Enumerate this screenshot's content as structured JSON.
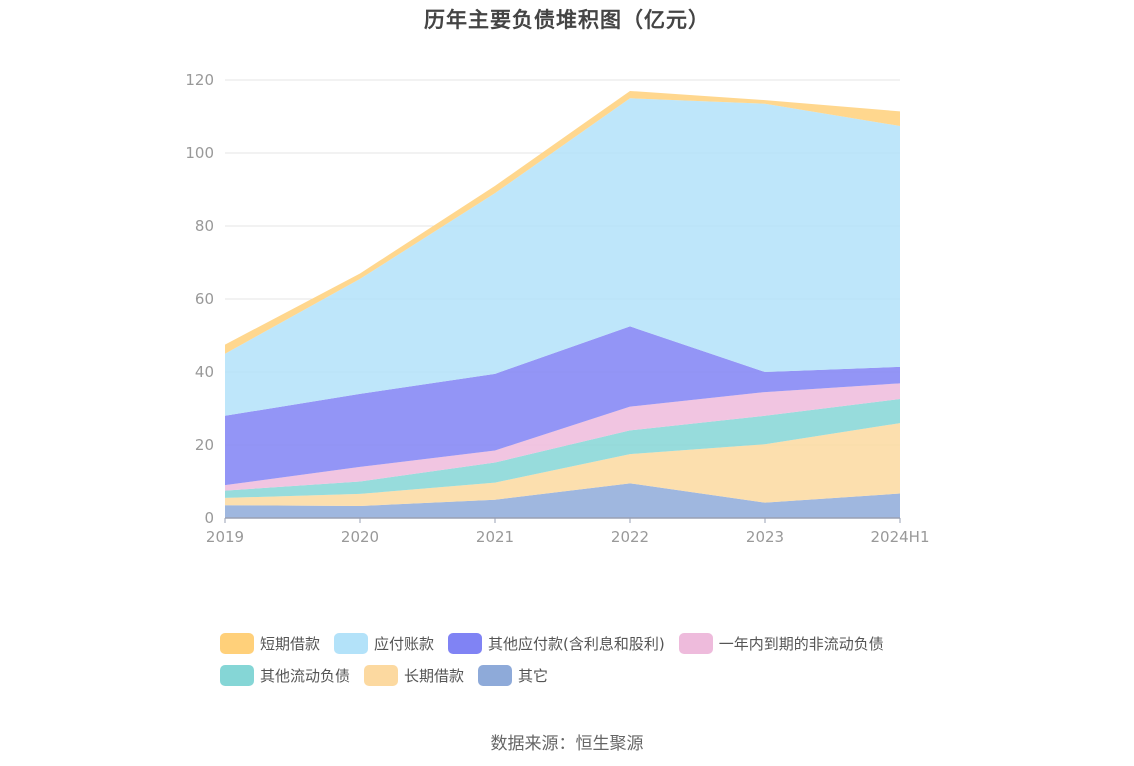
{
  "chart_data": {
    "type": "area",
    "stacked": true,
    "title": "历年主要负债堆积图（亿元）",
    "categories": [
      "2019",
      "2020",
      "2021",
      "2022",
      "2023",
      "2024H1"
    ],
    "y_ticks": [
      "0",
      "20",
      "40",
      "60",
      "80",
      "100",
      "120"
    ],
    "ylim": [
      0,
      120
    ],
    "grid": true,
    "legend_position": "bottom",
    "series": [
      {
        "name": "其它",
        "color": "#8eaad9",
        "values": [
          3.5,
          3.3,
          5.0,
          9.5,
          4.2,
          6.7
        ]
      },
      {
        "name": "长期借款",
        "color": "#fcd9a0",
        "values": [
          2.0,
          3.3,
          4.7,
          8.0,
          16.0,
          19.3
        ]
      },
      {
        "name": "其他流动负债",
        "color": "#85d6d6",
        "values": [
          2.0,
          3.4,
          5.5,
          6.5,
          7.8,
          6.6
        ]
      },
      {
        "name": "一年内到期的非流动负债",
        "color": "#eebbdc",
        "values": [
          1.5,
          4.0,
          3.3,
          6.5,
          6.5,
          4.3
        ]
      },
      {
        "name": "其他应付款(含利息和股利)",
        "color": "#8083f4",
        "values": [
          19.0,
          20.0,
          21.0,
          22.0,
          5.5,
          4.5
        ]
      },
      {
        "name": "应付账款",
        "color": "#b3e2f9",
        "values": [
          17.0,
          31.5,
          49.5,
          62.5,
          73.5,
          66.0
        ]
      },
      {
        "name": "短期借款",
        "color": "#ffd07a",
        "values": [
          2.5,
          1.5,
          2.0,
          2.0,
          1.0,
          4.0
        ]
      }
    ]
  },
  "source_text": "数据来源：恒生聚源"
}
